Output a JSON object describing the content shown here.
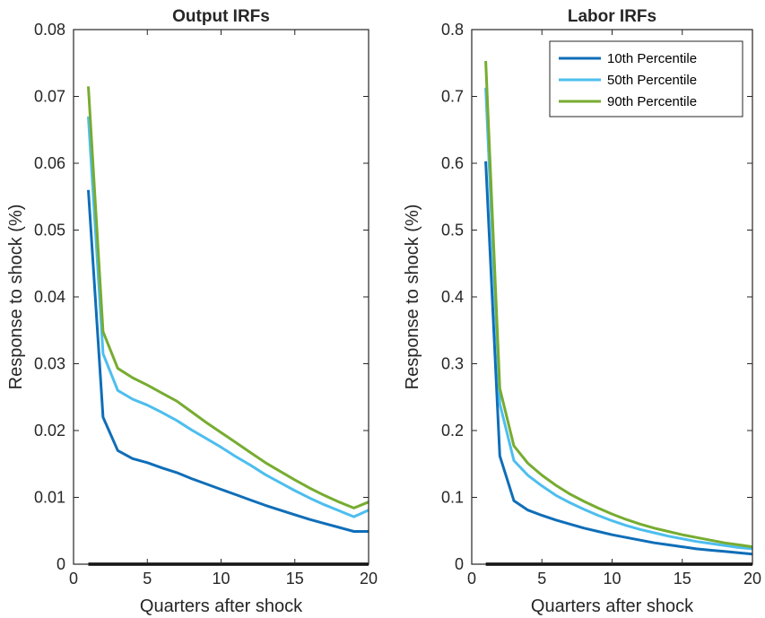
{
  "chart_data": [
    {
      "type": "line",
      "title": "Output IRFs",
      "xlabel": "Quarters after shock",
      "ylabel": "Response to shock (%)",
      "xlim": [
        0,
        20
      ],
      "ylim": [
        0,
        0.08
      ],
      "xticks": [
        "0",
        "5",
        "10",
        "15",
        "20"
      ],
      "yticks": [
        "0",
        "0.01",
        "0.02",
        "0.03",
        "0.04",
        "0.05",
        "0.06",
        "0.07",
        "0.08"
      ],
      "grid": false,
      "x": [
        1,
        2,
        3,
        4,
        5,
        6,
        7,
        8,
        9,
        10,
        11,
        12,
        13,
        14,
        15,
        16,
        17,
        18,
        19,
        20
      ],
      "series": [
        {
          "name": "10th Percentile",
          "color": "#0f6eb8",
          "values": [
            0.056,
            0.022,
            0.017,
            0.0158,
            0.0152,
            0.0144,
            0.0137,
            0.0128,
            0.012,
            0.0112,
            0.0104,
            0.0096,
            0.0088,
            0.0081,
            0.0074,
            0.0067,
            0.0061,
            0.0055,
            0.0049,
            0.0049
          ]
        },
        {
          "name": "50th Percentile",
          "color": "#4dbeee",
          "values": [
            0.067,
            0.0315,
            0.026,
            0.0247,
            0.0238,
            0.0227,
            0.0215,
            0.0201,
            0.0188,
            0.0175,
            0.0161,
            0.0148,
            0.0134,
            0.0122,
            0.011,
            0.0099,
            0.0089,
            0.008,
            0.0071,
            0.0081
          ]
        },
        {
          "name": "90th Percentile",
          "color": "#77ac30",
          "values": [
            0.0715,
            0.0348,
            0.0293,
            0.0279,
            0.0268,
            0.0256,
            0.0244,
            0.0228,
            0.0212,
            0.0197,
            0.0182,
            0.0167,
            0.0152,
            0.0139,
            0.0126,
            0.0114,
            0.0103,
            0.0093,
            0.0084,
            0.0093
          ]
        }
      ]
    },
    {
      "type": "line",
      "title": "Labor IRFs",
      "xlabel": "Quarters after shock",
      "ylabel": "Response to shock (%)",
      "xlim": [
        0,
        20
      ],
      "ylim": [
        0,
        0.8
      ],
      "xticks": [
        "0",
        "5",
        "10",
        "15",
        "20"
      ],
      "yticks": [
        "0",
        "0.1",
        "0.2",
        "0.3",
        "0.4",
        "0.5",
        "0.6",
        "0.7",
        "0.8"
      ],
      "grid": false,
      "legend": {
        "position": "top-right"
      },
      "x": [
        1,
        2,
        3,
        4,
        5,
        6,
        7,
        8,
        9,
        10,
        11,
        12,
        13,
        14,
        15,
        16,
        17,
        18,
        19,
        20
      ],
      "series": [
        {
          "name": "10th Percentile",
          "color": "#0f6eb8",
          "values": [
            0.603,
            0.162,
            0.095,
            0.081,
            0.073,
            0.066,
            0.06,
            0.054,
            0.049,
            0.044,
            0.04,
            0.036,
            0.032,
            0.029,
            0.026,
            0.023,
            0.021,
            0.019,
            0.017,
            0.015
          ]
        },
        {
          "name": "50th Percentile",
          "color": "#4dbeee",
          "values": [
            0.713,
            0.24,
            0.155,
            0.133,
            0.117,
            0.103,
            0.092,
            0.082,
            0.073,
            0.065,
            0.058,
            0.052,
            0.047,
            0.042,
            0.038,
            0.034,
            0.031,
            0.028,
            0.025,
            0.023
          ]
        },
        {
          "name": "90th Percentile",
          "color": "#77ac30",
          "values": [
            0.753,
            0.263,
            0.177,
            0.151,
            0.133,
            0.118,
            0.105,
            0.094,
            0.084,
            0.075,
            0.067,
            0.06,
            0.054,
            0.049,
            0.044,
            0.04,
            0.036,
            0.032,
            0.029,
            0.026
          ]
        }
      ]
    }
  ]
}
